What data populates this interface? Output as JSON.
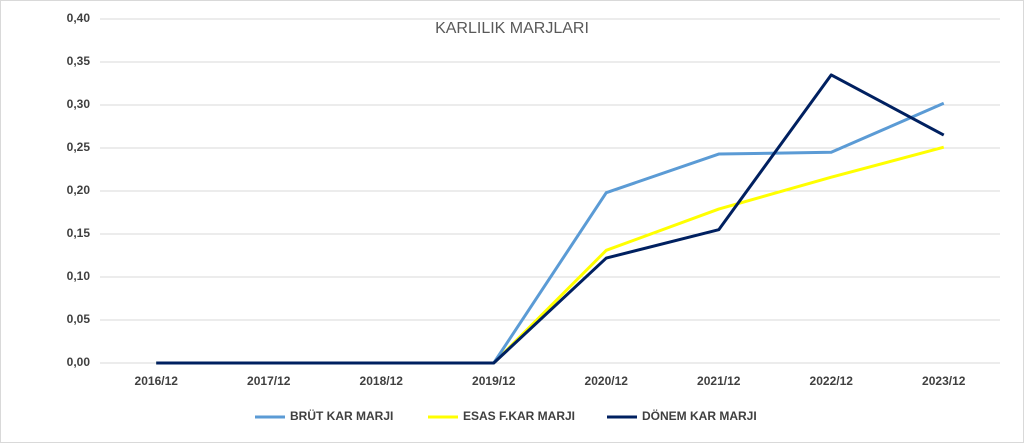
{
  "chart_data": {
    "type": "line",
    "title": "KARLILIK MARJLARI",
    "categories": [
      "2016/12",
      "2017/12",
      "2018/12",
      "2019/12",
      "2020/12",
      "2021/12",
      "2022/12",
      "2023/12"
    ],
    "series": [
      {
        "name": "BRÜT KAR MARJI",
        "color": "#5b9bd5",
        "values": [
          0,
          0,
          0,
          0,
          0.198,
          0.243,
          0.245,
          0.302
        ]
      },
      {
        "name": "ESAS F.KAR MARJI",
        "color": "#ffff00",
        "values": [
          0,
          0,
          0,
          0,
          0.131,
          0.179,
          0.216,
          0.251
        ]
      },
      {
        "name": "DÖNEM KAR MARJI",
        "color": "#002060",
        "values": [
          0,
          0,
          0,
          0,
          0.122,
          0.155,
          0.335,
          0.265
        ]
      }
    ],
    "ylim": [
      0,
      0.4
    ],
    "yticks": [
      {
        "value": 0,
        "label": "0,00"
      },
      {
        "value": 0.05,
        "label": "0,05"
      },
      {
        "value": 0.1,
        "label": "0,10"
      },
      {
        "value": 0.15,
        "label": "0,15"
      },
      {
        "value": 0.2,
        "label": "0,20"
      },
      {
        "value": 0.25,
        "label": "0,25"
      },
      {
        "value": 0.3,
        "label": "0,30"
      },
      {
        "value": 0.35,
        "label": "0,35"
      },
      {
        "value": 0.4,
        "label": "0,40"
      }
    ],
    "grid": true,
    "legend": "bottom"
  }
}
